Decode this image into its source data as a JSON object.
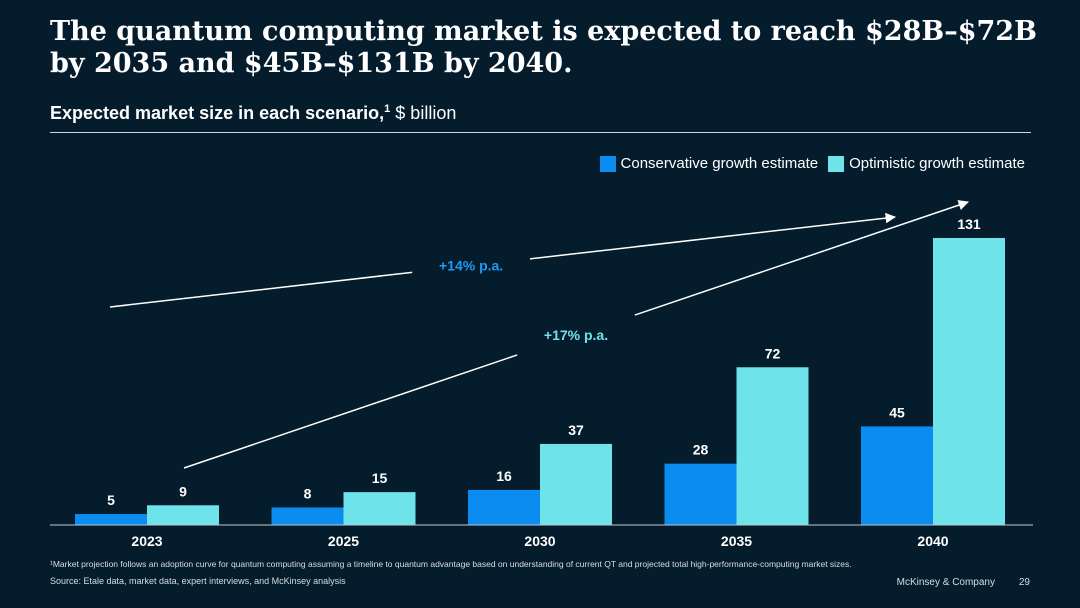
{
  "header": {
    "title": "The quantum computing market is expected to reach $28B–$72B by 2035 and $45B–$131B by 2040.",
    "subtitle_bold": "Expected market size in each scenario,",
    "subtitle_sup": "1",
    "subtitle_rest": " $ billion"
  },
  "colors": {
    "background": "#051C2C",
    "conservative": "#0B8CF0",
    "optimistic": "#6EE3EA",
    "cagr_conservative": "#1E9BF5",
    "cagr_optimistic": "#6EE3EA"
  },
  "chart_data": {
    "type": "bar",
    "categories": [
      "2023",
      "2025",
      "2030",
      "2035",
      "2040"
    ],
    "series": [
      {
        "name": "Conservative growth estimate",
        "values": [
          5,
          8,
          16,
          28,
          45
        ]
      },
      {
        "name": "Optimistic growth estimate",
        "values": [
          9,
          15,
          37,
          72,
          131
        ]
      }
    ],
    "ylim": [
      0,
      131
    ],
    "legend_position": "top-right",
    "grid": false,
    "annotations": [
      {
        "label": "+14% p.a.",
        "series": "Conservative growth estimate"
      },
      {
        "label": "+17% p.a.",
        "series": "Optimistic growth estimate"
      }
    ]
  },
  "footer": {
    "footnote": "¹Market projection follows an adoption curve for quantum computing assuming a timeline to quantum advantage based on understanding of current QT and projected total high-performance-computing market sizes.",
    "source": "Source: Etale data, market data, expert interviews, and McKinsey analysis",
    "brand": "McKinsey & Company",
    "page": "29"
  }
}
